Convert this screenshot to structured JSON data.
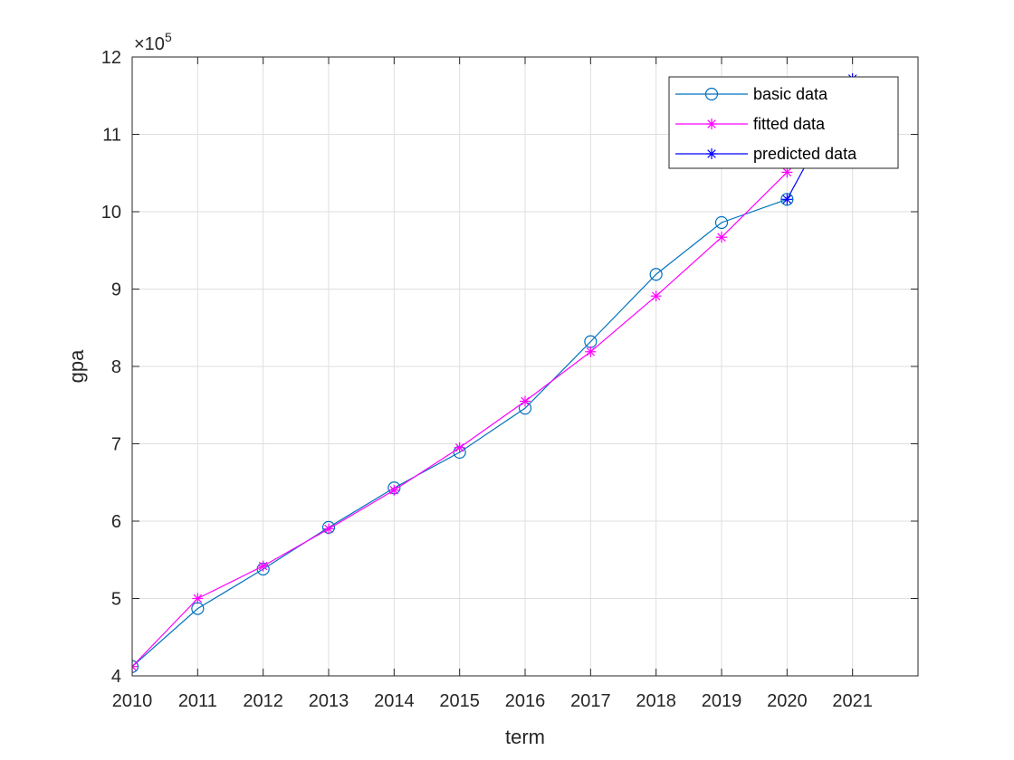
{
  "chart_data": {
    "type": "line",
    "xlabel": "term",
    "ylabel": "gpa",
    "y_exponent_base": "×10",
    "y_exponent_power": "5",
    "xlim": [
      2010,
      2022
    ],
    "ylim": [
      4,
      12
    ],
    "x_ticks": [
      2010,
      2011,
      2012,
      2013,
      2014,
      2015,
      2016,
      2017,
      2018,
      2019,
      2020,
      2021
    ],
    "y_ticks": [
      4,
      5,
      6,
      7,
      8,
      9,
      10,
      11,
      12
    ],
    "grid": true,
    "legend_position": "top-right",
    "series": [
      {
        "name": "basic data",
        "color": "#0072BD",
        "marker": "circle",
        "x": [
          2010,
          2011,
          2012,
          2013,
          2014,
          2015,
          2016,
          2017,
          2018,
          2019,
          2020
        ],
        "y": [
          4.12,
          4.87,
          5.38,
          5.92,
          6.43,
          6.89,
          7.46,
          8.32,
          9.19,
          9.86,
          10.16
        ]
      },
      {
        "name": "fitted data",
        "color": "#FF00FF",
        "marker": "asterisk",
        "x": [
          2010,
          2011,
          2012,
          2013,
          2014,
          2015,
          2016,
          2017,
          2018,
          2019,
          2020
        ],
        "y": [
          4.12,
          5.0,
          5.42,
          5.9,
          6.4,
          6.95,
          7.55,
          8.19,
          8.91,
          9.67,
          10.51
        ]
      },
      {
        "name": "predicted data",
        "color": "#0000FF",
        "marker": "asterisk",
        "x": [
          2020,
          2021
        ],
        "y": [
          10.16,
          11.72
        ]
      }
    ]
  }
}
